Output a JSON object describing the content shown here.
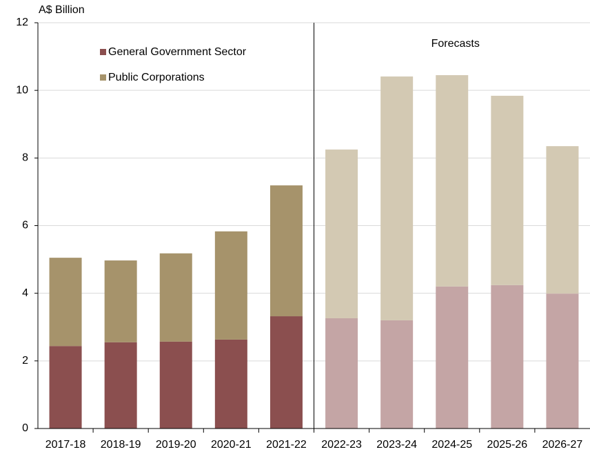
{
  "chart_data": {
    "type": "stacked_bar",
    "y_axis_label": "A$ Billion",
    "annotation": "Forecasts",
    "forecast_from": "2022-23",
    "categories": [
      "2017-18",
      "2018-19",
      "2019-20",
      "2020-21",
      "2021-22",
      "2022-23",
      "2023-24",
      "2024-25",
      "2025-26",
      "2026-27"
    ],
    "series": [
      {
        "name": "General Government Sector",
        "color": "#8b4f4f",
        "forecast_color": "#c4a5a5",
        "values": [
          2.44,
          2.55,
          2.57,
          2.63,
          3.32,
          3.26,
          3.2,
          4.2,
          4.24,
          3.99
        ]
      },
      {
        "name": "Public Corporations",
        "color": "#a6936b",
        "forecast_color": "#d3c9b3",
        "values": [
          2.61,
          2.42,
          2.61,
          3.2,
          3.87,
          4.99,
          7.21,
          6.25,
          5.6,
          4.36
        ]
      }
    ],
    "ylim": [
      0,
      12
    ],
    "yticks": [
      0,
      2,
      4,
      6,
      8,
      10,
      12
    ],
    "grid": true
  }
}
